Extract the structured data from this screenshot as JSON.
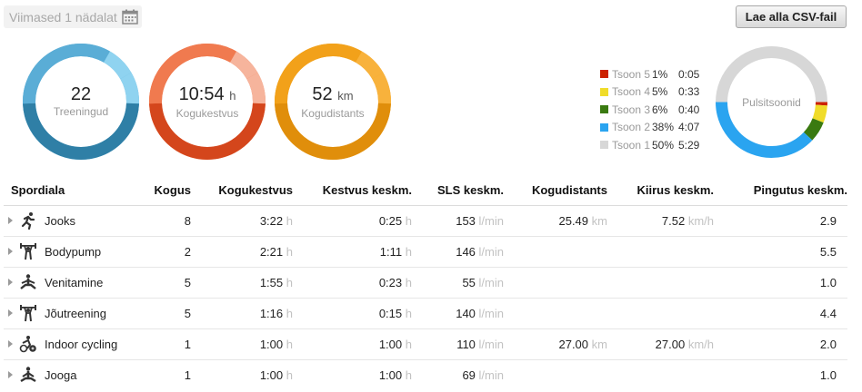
{
  "period": {
    "label": "Viimased 1 nädalat",
    "icon": "calendar-icon"
  },
  "csv_button": {
    "label": "Lae alla CSV-fail"
  },
  "summary": [
    {
      "id": "sessions",
      "value": "22",
      "unit": "",
      "label": "Treeningud",
      "color_light": "#8fd3f0",
      "color_mid": "#5aadd6",
      "color_dark": "#2f7fa6"
    },
    {
      "id": "duration",
      "value": "10:54",
      "unit": "h",
      "label": "Kogukestvus",
      "color_light": "#f6b49c",
      "color_mid": "#f07a4f",
      "color_dark": "#d4461c"
    },
    {
      "id": "distance",
      "value": "52",
      "unit": "km",
      "label": "Kogudistants",
      "color_light": "#f8b23c",
      "color_mid": "#f2a11a",
      "color_dark": "#e08e0b"
    }
  ],
  "hr_zones": {
    "title": "Pulsitsoonid",
    "zones": [
      {
        "name": "Tsoon 5",
        "pct": "1%",
        "time": "0:05",
        "color": "#cc2200",
        "fraction": 0.01
      },
      {
        "name": "Tsoon 4",
        "pct": "5%",
        "time": "0:33",
        "color": "#f0dc2a",
        "fraction": 0.05
      },
      {
        "name": "Tsoon 3",
        "pct": "6%",
        "time": "0:40",
        "color": "#3a7a10",
        "fraction": 0.06
      },
      {
        "name": "Tsoon 2",
        "pct": "38%",
        "time": "4:07",
        "color": "#2aa4f0",
        "fraction": 0.38
      },
      {
        "name": "Tsoon 1",
        "pct": "50%",
        "time": "5:29",
        "color": "#d7d7d7",
        "fraction": 0.5
      }
    ]
  },
  "table": {
    "headers": [
      "Spordiala",
      "Kogus",
      "Kogukestvus",
      "Kestvus keskm.",
      "SLS keskm.",
      "Kogudistants",
      "Kiirus keskm.",
      "Pingutus keskm."
    ],
    "rows": [
      {
        "icon": "running-icon",
        "name": "Jooks",
        "count": "8",
        "total": "3:22",
        "total_u": "h",
        "avg": "0:25",
        "avg_u": "h",
        "hr": "153",
        "hr_u": "l/min",
        "dist": "25.49",
        "dist_u": "km",
        "speed": "7.52",
        "speed_u": "km/h",
        "effort": "2.9"
      },
      {
        "icon": "weightlifting-icon",
        "name": "Bodypump",
        "count": "2",
        "total": "2:21",
        "total_u": "h",
        "avg": "1:11",
        "avg_u": "h",
        "hr": "146",
        "hr_u": "l/min",
        "dist": "",
        "dist_u": "",
        "speed": "",
        "speed_u": "",
        "effort": "5.5"
      },
      {
        "icon": "stretching-icon",
        "name": "Venitamine",
        "count": "5",
        "total": "1:55",
        "total_u": "h",
        "avg": "0:23",
        "avg_u": "h",
        "hr": "55",
        "hr_u": "l/min",
        "dist": "",
        "dist_u": "",
        "speed": "",
        "speed_u": "",
        "effort": "1.0"
      },
      {
        "icon": "weightlifting-icon",
        "name": "Jõutreening",
        "count": "5",
        "total": "1:16",
        "total_u": "h",
        "avg": "0:15",
        "avg_u": "h",
        "hr": "140",
        "hr_u": "l/min",
        "dist": "",
        "dist_u": "",
        "speed": "",
        "speed_u": "",
        "effort": "4.4"
      },
      {
        "icon": "cycling-icon",
        "name": "Indoor cycling",
        "count": "1",
        "total": "1:00",
        "total_u": "h",
        "avg": "1:00",
        "avg_u": "h",
        "hr": "110",
        "hr_u": "l/min",
        "dist": "27.00",
        "dist_u": "km",
        "speed": "27.00",
        "speed_u": "km/h",
        "effort": "2.0"
      },
      {
        "icon": "yoga-icon",
        "name": "Jooga",
        "count": "1",
        "total": "1:00",
        "total_u": "h",
        "avg": "1:00",
        "avg_u": "h",
        "hr": "69",
        "hr_u": "l/min",
        "dist": "",
        "dist_u": "",
        "speed": "",
        "speed_u": "",
        "effort": "1.0"
      }
    ]
  }
}
